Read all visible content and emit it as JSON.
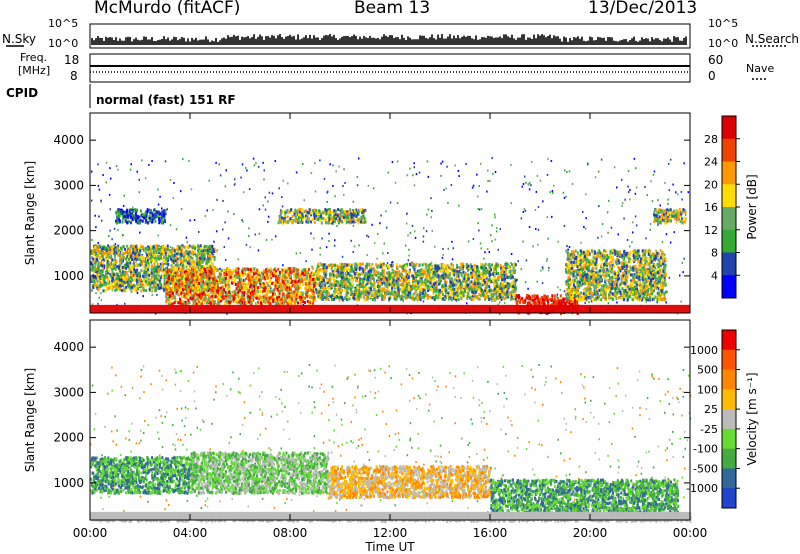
{
  "header": {
    "station": "McMurdo (fitACF)",
    "beam": "Beam 13",
    "date": "13/Dec/2013"
  },
  "noise_panel": {
    "left_label": "N.Sky",
    "right_label": "N.Search",
    "left_ticks": [
      "10^5",
      "10^0"
    ],
    "right_ticks": [
      "10^5",
      "10^0"
    ]
  },
  "freq_panel": {
    "left_label_1": "Freq.",
    "left_label_2": "[MHz]",
    "right_label": "Nave",
    "left_ticks": [
      "18",
      "8"
    ],
    "right_ticks": [
      "60",
      "0"
    ]
  },
  "cpid_panel": {
    "label": "CPID",
    "text": "normal (fast) 151 RF"
  },
  "chart_data": [
    {
      "type": "heatmap",
      "title": "",
      "ylabel": "Slant Range [km]",
      "xlabel": "",
      "x_ticks": [
        "00:00",
        "04:00",
        "08:00",
        "12:00",
        "16:00",
        "20:00",
        "00:00"
      ],
      "y_ticks": [
        "1000",
        "2000",
        "3000",
        "4000"
      ],
      "ylim": [
        180,
        4600
      ],
      "xlim_hours": [
        0,
        24
      ],
      "colorbar": {
        "label": "Power [dB]",
        "ticks": [
          "4",
          "8",
          "12",
          "16",
          "20",
          "24",
          "28"
        ],
        "colors": [
          "#0000ff",
          "#2244aa",
          "#33aa33",
          "#66aa66",
          "#ffdd00",
          "#ff9900",
          "#ee4400",
          "#dd0000"
        ]
      },
      "regions": [
        {
          "t0": 0.0,
          "t1": 5.0,
          "r0": 700,
          "r1": 1700,
          "level": "mid"
        },
        {
          "t0": 3.0,
          "t1": 9.0,
          "r0": 400,
          "r1": 1200,
          "level": "high"
        },
        {
          "t0": 9.0,
          "t1": 17.0,
          "r0": 500,
          "r1": 1300,
          "level": "mid"
        },
        {
          "t0": 17.0,
          "t1": 19.5,
          "r0": 200,
          "r1": 600,
          "level": "veryhigh"
        },
        {
          "t0": 19.0,
          "t1": 23.0,
          "r0": 500,
          "r1": 1600,
          "level": "mid"
        },
        {
          "t0": 1.0,
          "t1": 3.0,
          "r0": 2200,
          "r1": 2500,
          "level": "low"
        },
        {
          "t0": 7.5,
          "t1": 11.0,
          "r0": 2200,
          "r1": 2500,
          "level": "mid"
        },
        {
          "t0": 22.5,
          "t1": 23.8,
          "r0": 2200,
          "r1": 2500,
          "level": "mid"
        }
      ]
    },
    {
      "type": "heatmap",
      "title": "",
      "ylabel": "Slant Range [km]",
      "xlabel": "Time UT",
      "x_ticks": [
        "00:00",
        "04:00",
        "08:00",
        "12:00",
        "16:00",
        "20:00",
        "00:00"
      ],
      "y_ticks": [
        "1000",
        "2000",
        "3000",
        "4000"
      ],
      "ylim": [
        180,
        4600
      ],
      "xlim_hours": [
        0,
        24
      ],
      "colorbar": {
        "label": "Velocity [m s⁻¹]",
        "ticks": [
          "1000",
          "500",
          "100",
          "25",
          "-25",
          "-100",
          "-500",
          "-1000"
        ],
        "colors": [
          "#2244cc",
          "#336699",
          "#44aa44",
          "#66dd33",
          "#bbbbbb",
          "#ffbb00",
          "#ff8800",
          "#ff5500",
          "#ee0000"
        ]
      },
      "regions": [
        {
          "t0": 0.0,
          "t1": 4.0,
          "r0": 800,
          "r1": 1600,
          "level": "green"
        },
        {
          "t0": 4.0,
          "t1": 9.5,
          "r0": 800,
          "r1": 1700,
          "level": "lightgreen"
        },
        {
          "t0": 9.5,
          "t1": 16.0,
          "r0": 700,
          "r1": 1400,
          "level": "orange"
        },
        {
          "t0": 16.0,
          "t1": 23.5,
          "r0": 300,
          "r1": 1100,
          "level": "green"
        },
        {
          "t0": 0.0,
          "t1": 24.0,
          "r0": 180,
          "r1": 350,
          "level": "gray"
        }
      ]
    }
  ]
}
